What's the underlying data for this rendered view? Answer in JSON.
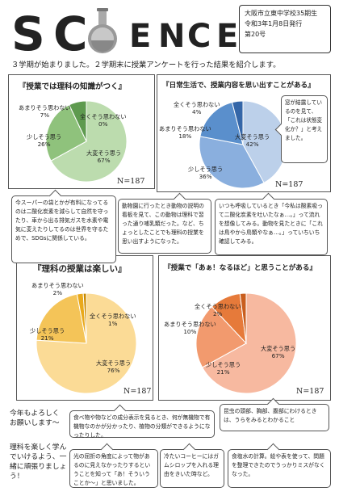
{
  "header": {
    "logo_letters": [
      "S",
      "C",
      "E",
      "N",
      "C",
      "E"
    ],
    "school": "大阪市立東中学校35期生",
    "date": "令和3年1月8日発行",
    "issue": "第20号"
  },
  "intro": "３学期が始まりました。２学期末に授業アンケートを行った結果を紹介します。",
  "charts": [
    {
      "title": "『授業では理科の知識がつく』",
      "n_label": "N=187",
      "colors": [
        "#bcdcae",
        "#8fc27c",
        "#5e9a4f",
        "#3e7a35"
      ],
      "slices": [
        {
          "label": "大変そう思う",
          "pct": "67%",
          "value": 67
        },
        {
          "label": "少しそう思う",
          "pct": "26%",
          "value": 26
        },
        {
          "label": "あまりそう思わない",
          "pct": "7%",
          "value": 7
        },
        {
          "label": "全くそう思わない",
          "pct": "0%",
          "value": 0
        }
      ]
    },
    {
      "title": "『日常生活で、授業内容を思い出すことがある』",
      "n_label": "N=187",
      "colors": [
        "#bcd0ea",
        "#8aafde",
        "#5a8fcc",
        "#3466a8"
      ],
      "slices": [
        {
          "label": "大変そう思う",
          "pct": "42%",
          "value": 42
        },
        {
          "label": "少しそう思う",
          "pct": "36%",
          "value": 36
        },
        {
          "label": "あまりそう思わない",
          "pct": "18%",
          "value": 18
        },
        {
          "label": "全くそう思わない",
          "pct": "4%",
          "value": 4
        }
      ]
    },
    {
      "title": "『理科の授業は楽しい』",
      "n_label": "N=187",
      "colors": [
        "#fbdb96",
        "#f4c458",
        "#e9a91c",
        "#c98a00"
      ],
      "slices": [
        {
          "label": "大変そう思う",
          "pct": "76%",
          "value": 76
        },
        {
          "label": "少しそう思う",
          "pct": "21%",
          "value": 21
        },
        {
          "label": "あまりそう思わない",
          "pct": "2%",
          "value": 2
        },
        {
          "label": "全くそう思わない",
          "pct": "1%",
          "value": 1
        }
      ]
    },
    {
      "title": "『授業で「あぁ！なるほど」と思うことがある』",
      "n_label": "N=187",
      "colors": [
        "#f7b9a0",
        "#f29a6e",
        "#e67a3a",
        "#c95e1e"
      ],
      "slices": [
        {
          "label": "大変そう思う",
          "pct": "67%",
          "value": 67
        },
        {
          "label": "少しそう思う",
          "pct": "21%",
          "value": 21
        },
        {
          "label": "あまりそう思わない",
          "pct": "10%",
          "value": 10
        },
        {
          "label": "全くそう思わない",
          "pct": "2%",
          "value": 2
        }
      ]
    }
  ],
  "comments": {
    "c1": "今スーパーの袋とかが有料になってるのは二酸化炭素を減らして自然を守ったり、車から出る排気ガスを水素や電気に変えたりしてるのは世界を守るためで、SDGsに関係している。",
    "c2": "動物園に行ったとき動物の説明の看板を見て、この動物は理科で習った通り哺乳類だった。など、ちょっとしたことでも理科の授業を思い出すようになった。",
    "c3": "いつも呼吸しているとき「今私は酸素吸って二酸化炭素を吐いたなぁ…。」って流れを想像してみる。動物を見たときに「これは鳥やから鳥類やなぁ…。」っていちいち確認してみる。",
    "c4": "窓が結露しているのを見て、「これは状態変化か？」と考えました。",
    "c5": "食べ物や物などの成分表示を見るとき、何が無機物で有機物なのかが分かったり、植物の分類ができるようになったりした。",
    "c6": "昆虫の頭部、胸部、腹部にわけるときは、うらをみるとわかること",
    "c7": "光の屈折の角度によって物があるのに見えなかったりするということを知って「あ！そういうことか～」と思いました。",
    "c8": "冷たいコーヒーにはガムシロップを入れる理由をきいた時など。",
    "c9": "食塩水の計算。絵や表を使って、問題を整理できたのでうっかりミスがなくなった。"
  },
  "side": {
    "text1": "今年もよろしくお願いします～",
    "text2": "理科を楽しく学んでいけるよう、一緒に頑張りましょう！"
  }
}
